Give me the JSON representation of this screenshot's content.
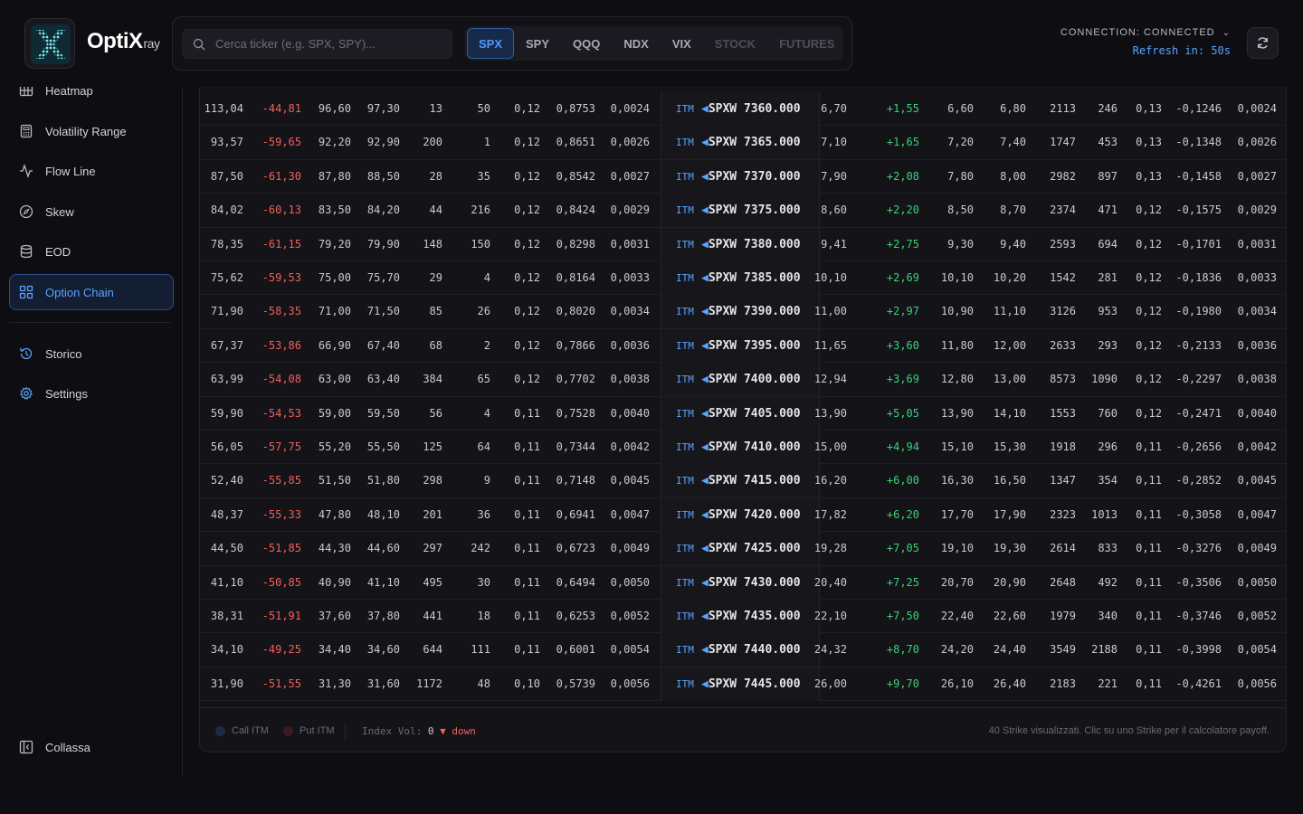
{
  "brand": {
    "name": "OptiX",
    "suffix": "ray"
  },
  "search": {
    "placeholder": "Cerca ticker (e.g. SPX, SPY)..."
  },
  "tickers": [
    {
      "label": "SPX",
      "state": "active"
    },
    {
      "label": "SPY",
      "state": "normal"
    },
    {
      "label": "QQQ",
      "state": "normal"
    },
    {
      "label": "NDX",
      "state": "normal"
    },
    {
      "label": "VIX",
      "state": "normal"
    },
    {
      "label": "STOCK",
      "state": "dim"
    },
    {
      "label": "FUTURES",
      "state": "dim"
    }
  ],
  "connection": {
    "status": "CONNECTION: CONNECTED",
    "refresh": "Refresh in: 50s"
  },
  "sidebar": {
    "items": [
      {
        "label": "Heatmap",
        "icon": "grid-icon"
      },
      {
        "label": "Volatility Range",
        "icon": "calculator-icon"
      },
      {
        "label": "Flow Line",
        "icon": "pulse-icon"
      },
      {
        "label": "Skew",
        "icon": "compass-icon"
      },
      {
        "label": "EOD",
        "icon": "database-icon"
      },
      {
        "label": "Option Chain",
        "icon": "grid-squares-icon",
        "active": true
      },
      {
        "label": "Storico",
        "icon": "history-icon"
      },
      {
        "label": "Settings",
        "icon": "gear-icon"
      }
    ],
    "collapse": "Collassa"
  },
  "chain": {
    "rows": [
      {
        "c": [
          "113,04",
          "-44,81",
          "96,60",
          "97,30",
          "13",
          "50",
          "0,12",
          "0,8753",
          "0,0024"
        ],
        "tag": "ITM",
        "root": "SPXW",
        "strike": "7360.000",
        "p": [
          "6,70",
          "+1,55",
          "6,60",
          "6,80",
          "2113",
          "246",
          "0,13",
          "-0,1246",
          "0,0024"
        ]
      },
      {
        "c": [
          "93,57",
          "-59,65",
          "92,20",
          "92,90",
          "200",
          "1",
          "0,12",
          "0,8651",
          "0,0026"
        ],
        "tag": "ITM",
        "root": "SPXW",
        "strike": "7365.000",
        "p": [
          "7,10",
          "+1,65",
          "7,20",
          "7,40",
          "1747",
          "453",
          "0,13",
          "-0,1348",
          "0,0026"
        ]
      },
      {
        "c": [
          "87,50",
          "-61,30",
          "87,80",
          "88,50",
          "28",
          "35",
          "0,12",
          "0,8542",
          "0,0027"
        ],
        "tag": "ITM",
        "root": "SPXW",
        "strike": "7370.000",
        "p": [
          "7,90",
          "+2,08",
          "7,80",
          "8,00",
          "2982",
          "897",
          "0,13",
          "-0,1458",
          "0,0027"
        ]
      },
      {
        "c": [
          "84,02",
          "-60,13",
          "83,50",
          "84,20",
          "44",
          "216",
          "0,12",
          "0,8424",
          "0,0029"
        ],
        "tag": "ITM",
        "root": "SPXW",
        "strike": "7375.000",
        "p": [
          "8,60",
          "+2,20",
          "8,50",
          "8,70",
          "2374",
          "471",
          "0,12",
          "-0,1575",
          "0,0029"
        ]
      },
      {
        "c": [
          "78,35",
          "-61,15",
          "79,20",
          "79,90",
          "148",
          "150",
          "0,12",
          "0,8298",
          "0,0031"
        ],
        "tag": "ITM",
        "root": "SPXW",
        "strike": "7380.000",
        "p": [
          "9,41",
          "+2,75",
          "9,30",
          "9,40",
          "2593",
          "694",
          "0,12",
          "-0,1701",
          "0,0031"
        ]
      },
      {
        "c": [
          "75,62",
          "-59,53",
          "75,00",
          "75,70",
          "29",
          "4",
          "0,12",
          "0,8164",
          "0,0033"
        ],
        "tag": "ITM",
        "root": "SPXW",
        "strike": "7385.000",
        "p": [
          "10,10",
          "+2,69",
          "10,10",
          "10,20",
          "1542",
          "281",
          "0,12",
          "-0,1836",
          "0,0033"
        ]
      },
      {
        "c": [
          "71,90",
          "-58,35",
          "71,00",
          "71,50",
          "85",
          "26",
          "0,12",
          "0,8020",
          "0,0034"
        ],
        "tag": "ITM",
        "root": "SPXW",
        "strike": "7390.000",
        "p": [
          "11,00",
          "+2,97",
          "10,90",
          "11,10",
          "3126",
          "953",
          "0,12",
          "-0,1980",
          "0,0034"
        ]
      },
      {
        "c": [
          "67,37",
          "-53,86",
          "66,90",
          "67,40",
          "68",
          "2",
          "0,12",
          "0,7866",
          "0,0036"
        ],
        "tag": "ITM",
        "root": "SPXW",
        "strike": "7395.000",
        "p": [
          "11,65",
          "+3,60",
          "11,80",
          "12,00",
          "2633",
          "293",
          "0,12",
          "-0,2133",
          "0,0036"
        ]
      },
      {
        "c": [
          "63,99",
          "-54,08",
          "63,00",
          "63,40",
          "384",
          "65",
          "0,12",
          "0,7702",
          "0,0038"
        ],
        "tag": "ITM",
        "root": "SPXW",
        "strike": "7400.000",
        "p": [
          "12,94",
          "+3,69",
          "12,80",
          "13,00",
          "8573",
          "1090",
          "0,12",
          "-0,2297",
          "0,0038"
        ]
      },
      {
        "c": [
          "59,90",
          "-54,53",
          "59,00",
          "59,50",
          "56",
          "4",
          "0,11",
          "0,7528",
          "0,0040"
        ],
        "tag": "ITM",
        "root": "SPXW",
        "strike": "7405.000",
        "p": [
          "13,90",
          "+5,05",
          "13,90",
          "14,10",
          "1553",
          "760",
          "0,12",
          "-0,2471",
          "0,0040"
        ]
      },
      {
        "c": [
          "56,05",
          "-57,75",
          "55,20",
          "55,50",
          "125",
          "64",
          "0,11",
          "0,7344",
          "0,0042"
        ],
        "tag": "ITM",
        "root": "SPXW",
        "strike": "7410.000",
        "p": [
          "15,00",
          "+4,94",
          "15,10",
          "15,30",
          "1918",
          "296",
          "0,11",
          "-0,2656",
          "0,0042"
        ]
      },
      {
        "c": [
          "52,40",
          "-55,85",
          "51,50",
          "51,80",
          "298",
          "9",
          "0,11",
          "0,7148",
          "0,0045"
        ],
        "tag": "ITM",
        "root": "SPXW",
        "strike": "7415.000",
        "p": [
          "16,20",
          "+6,00",
          "16,30",
          "16,50",
          "1347",
          "354",
          "0,11",
          "-0,2852",
          "0,0045"
        ]
      },
      {
        "c": [
          "48,37",
          "-55,33",
          "47,80",
          "48,10",
          "201",
          "36",
          "0,11",
          "0,6941",
          "0,0047"
        ],
        "tag": "ITM",
        "root": "SPXW",
        "strike": "7420.000",
        "p": [
          "17,82",
          "+6,20",
          "17,70",
          "17,90",
          "2323",
          "1013",
          "0,11",
          "-0,3058",
          "0,0047"
        ]
      },
      {
        "c": [
          "44,50",
          "-51,85",
          "44,30",
          "44,60",
          "297",
          "242",
          "0,11",
          "0,6723",
          "0,0049"
        ],
        "tag": "ITM",
        "root": "SPXW",
        "strike": "7425.000",
        "p": [
          "19,28",
          "+7,05",
          "19,10",
          "19,30",
          "2614",
          "833",
          "0,11",
          "-0,3276",
          "0,0049"
        ]
      },
      {
        "c": [
          "41,10",
          "-50,85",
          "40,90",
          "41,10",
          "495",
          "30",
          "0,11",
          "0,6494",
          "0,0050"
        ],
        "tag": "ITM",
        "root": "SPXW",
        "strike": "7430.000",
        "p": [
          "20,40",
          "+7,25",
          "20,70",
          "20,90",
          "2648",
          "492",
          "0,11",
          "-0,3506",
          "0,0050"
        ]
      },
      {
        "c": [
          "38,31",
          "-51,91",
          "37,60",
          "37,80",
          "441",
          "18",
          "0,11",
          "0,6253",
          "0,0052"
        ],
        "tag": "ITM",
        "root": "SPXW",
        "strike": "7435.000",
        "p": [
          "22,10",
          "+7,50",
          "22,40",
          "22,60",
          "1979",
          "340",
          "0,11",
          "-0,3746",
          "0,0052"
        ]
      },
      {
        "c": [
          "34,10",
          "-49,25",
          "34,40",
          "34,60",
          "644",
          "111",
          "0,11",
          "0,6001",
          "0,0054"
        ],
        "tag": "ITM",
        "root": "SPXW",
        "strike": "7440.000",
        "p": [
          "24,32",
          "+8,70",
          "24,20",
          "24,40",
          "3549",
          "2188",
          "0,11",
          "-0,3998",
          "0,0054"
        ]
      },
      {
        "c": [
          "31,90",
          "-51,55",
          "31,30",
          "31,60",
          "1172",
          "48",
          "0,10",
          "0,5739",
          "0,0056"
        ],
        "tag": "ITM",
        "root": "SPXW",
        "strike": "7445.000",
        "p": [
          "26,00",
          "+9,70",
          "26,10",
          "26,40",
          "2183",
          "221",
          "0,11",
          "-0,4261",
          "0,0056"
        ]
      }
    ]
  },
  "footer": {
    "call_itm": "Call ITM",
    "put_itm": "Put ITM",
    "index_vol_label": "Index Vol:",
    "index_vol_value": "0",
    "index_vol_dir": "▼ down",
    "note": "40 Strike visualizzati. Clic su uno Strike per il calcolatore payoff."
  },
  "colors": {
    "accent": "#5aa3ff",
    "negative": "#f0605c",
    "positive": "#3ecf7a",
    "call_dot": "#1c2a44",
    "put_dot": "#3a1c1f"
  }
}
